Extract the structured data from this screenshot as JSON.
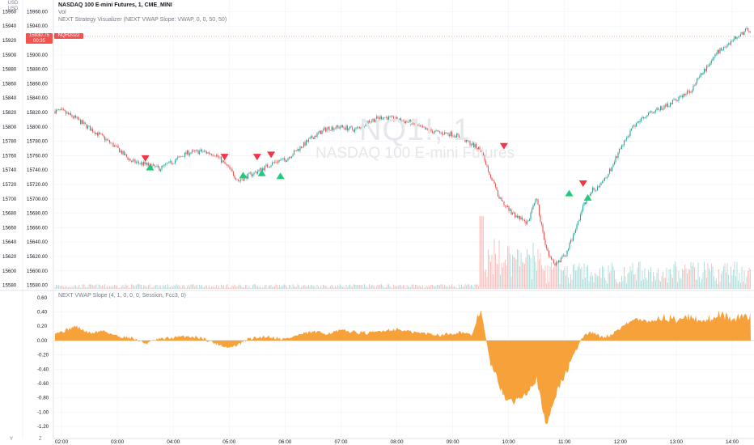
{
  "scale": {
    "currency": "USD",
    "axis_unit": "USD"
  },
  "legend": {
    "title": "NASDAQ 100 E-mini Futures, 1, CME_MINI",
    "volume": "Vol",
    "strategy": "NEXT Strategy Visualizer (NEXT VWAP Slope: VWAP, 0, 0, 50, 50)"
  },
  "indicator": {
    "legend": "NEXT VWAP Slope (4, 1, 0, 0, 0, Session, Fcc3, 0)"
  },
  "watermark": {
    "symbol": "NQ1!, 1",
    "name": "NASDAQ 100 E-mini Futures"
  },
  "last_price": {
    "price": "15930.75",
    "countdown": "00:35",
    "symbol": "NQH2022"
  },
  "colors": {
    "up": "#26a69a",
    "down": "#ef5350",
    "slope": "#f7a13a",
    "sell_marker": "#f23645",
    "buy_marker": "#22c97a"
  },
  "price_axis": {
    "ticks": [
      "15960.00",
      "15940.00",
      "15920.00",
      "15900.00",
      "15880.00",
      "15860.00",
      "15840.00",
      "15820.00",
      "15800.00",
      "15780.00",
      "15760.00",
      "15740.00",
      "15720.00",
      "15700.00",
      "15680.00",
      "15660.00",
      "15640.00",
      "15620.00",
      "15600.00",
      "15580.00"
    ]
  },
  "slope_axis": {
    "ticks": [
      "0.60",
      "0.40",
      "0.20",
      "0.00",
      "-0.20",
      "-0.40",
      "-0.60",
      "-0.80",
      "-1.00",
      "-1.20"
    ]
  },
  "time_axis": {
    "ticks": [
      "02:00",
      "03:00",
      "04:00",
      "05:00",
      "06:00",
      "07:00",
      "08:00",
      "09:00",
      "10:00",
      "11:00",
      "12:00",
      "13:00",
      "14:00"
    ]
  },
  "bottom_buttons": {
    "left": "Y",
    "right": "Z"
  },
  "chart_data": {
    "type": "line",
    "price_series": {
      "name": "NQH2022",
      "x": [
        "02:00",
        "02:15",
        "02:30",
        "02:45",
        "03:00",
        "03:15",
        "03:30",
        "03:45",
        "04:00",
        "04:15",
        "04:30",
        "04:45",
        "05:00",
        "05:10",
        "05:20",
        "05:30",
        "05:40",
        "05:50",
        "06:00",
        "06:15",
        "06:30",
        "06:45",
        "07:00",
        "07:15",
        "07:30",
        "07:45",
        "08:00",
        "08:15",
        "08:30",
        "08:45",
        "09:00",
        "09:10",
        "09:20",
        "09:30",
        "09:40",
        "09:50",
        "10:00",
        "10:10",
        "10:20",
        "10:30",
        "10:40",
        "10:50",
        "11:00",
        "11:10",
        "11:20",
        "11:30",
        "11:40",
        "11:50",
        "12:00",
        "12:15",
        "12:30",
        "12:45",
        "13:00",
        "13:15",
        "13:30",
        "13:45",
        "14:00",
        "14:15"
      ],
      "values": [
        15822,
        15812,
        15798,
        15785,
        15770,
        15752,
        15748,
        15742,
        15752,
        15764,
        15766,
        15762,
        15742,
        15725,
        15732,
        15738,
        15745,
        15752,
        15754,
        15770,
        15786,
        15798,
        15800,
        15796,
        15808,
        15814,
        15810,
        15806,
        15796,
        15792,
        15790,
        15784,
        15776,
        15768,
        15734,
        15700,
        15685,
        15674,
        15666,
        15700,
        15630,
        15610,
        15620,
        15650,
        15690,
        15712,
        15720,
        15742,
        15770,
        15802,
        15820,
        15826,
        15838,
        15850,
        15878,
        15905,
        15920,
        15934
      ],
      "ylim": [
        15575,
        15965
      ]
    },
    "volume_series": {
      "name": "Vol"
    },
    "sell_signals": [
      {
        "x": "03:30",
        "y": 15755
      },
      {
        "x": "04:55",
        "y": 15757
      },
      {
        "x": "05:30",
        "y": 15757
      },
      {
        "x": "05:45",
        "y": 15760
      },
      {
        "x": "09:55",
        "y": 15772
      },
      {
        "x": "11:20",
        "y": 15720
      }
    ],
    "buy_signals": [
      {
        "x": "03:35",
        "y": 15744
      },
      {
        "x": "05:15",
        "y": 15733
      },
      {
        "x": "05:35",
        "y": 15736
      },
      {
        "x": "05:55",
        "y": 15732
      },
      {
        "x": "11:05",
        "y": 15708
      },
      {
        "x": "11:25",
        "y": 15702
      }
    ],
    "slope_series": {
      "name": "NEXT VWAP Slope",
      "x": [
        "02:00",
        "02:15",
        "02:30",
        "02:45",
        "03:00",
        "03:15",
        "03:30",
        "03:45",
        "04:00",
        "04:15",
        "04:30",
        "04:45",
        "05:00",
        "05:10",
        "05:20",
        "05:30",
        "05:40",
        "05:50",
        "06:00",
        "06:15",
        "06:30",
        "06:45",
        "07:00",
        "07:15",
        "07:30",
        "07:45",
        "08:00",
        "08:15",
        "08:30",
        "08:45",
        "09:00",
        "09:10",
        "09:20",
        "09:30",
        "09:40",
        "09:50",
        "10:00",
        "10:10",
        "10:20",
        "10:30",
        "10:40",
        "10:50",
        "11:00",
        "11:10",
        "11:20",
        "11:30",
        "11:40",
        "11:50",
        "12:00",
        "12:15",
        "12:30",
        "12:45",
        "13:00",
        "13:15",
        "13:30",
        "13:45",
        "14:00",
        "14:15"
      ],
      "values": [
        0.12,
        0.2,
        0.1,
        0.14,
        0.06,
        0.04,
        -0.04,
        0.02,
        0.04,
        0.06,
        0.04,
        -0.04,
        -0.1,
        -0.06,
        0.02,
        0.04,
        0.06,
        0.04,
        0.02,
        0.08,
        0.12,
        0.1,
        0.14,
        0.12,
        0.1,
        0.14,
        0.16,
        0.12,
        0.1,
        0.08,
        0.1,
        0.12,
        0.06,
        0.45,
        -0.3,
        -0.62,
        -0.88,
        -0.82,
        -0.7,
        -0.52,
        -1.22,
        -0.76,
        -0.5,
        -0.2,
        0.06,
        0.12,
        0.04,
        0.08,
        0.18,
        0.3,
        0.26,
        0.32,
        0.3,
        0.34,
        0.26,
        0.38,
        0.3,
        0.34
      ],
      "ylim": [
        -1.3,
        0.62
      ]
    }
  }
}
